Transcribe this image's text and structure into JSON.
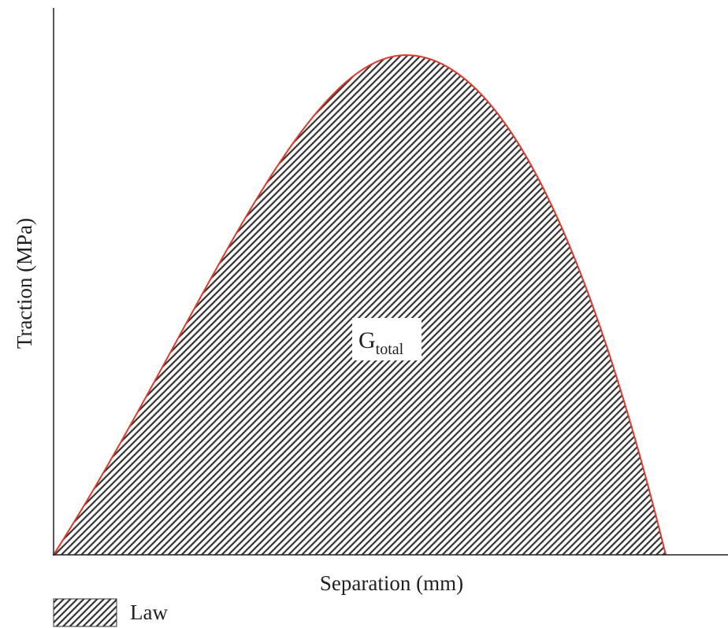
{
  "axes": {
    "x_label": "Separation (mm)",
    "y_label": "Traction (MPa)"
  },
  "annotation": {
    "text": "G",
    "subscript": "total"
  },
  "legend": {
    "label": "Law"
  }
}
